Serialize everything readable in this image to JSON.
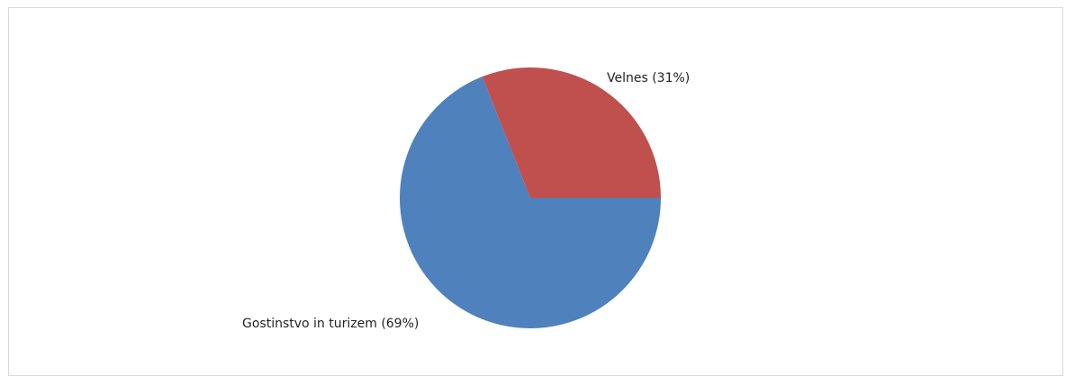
{
  "chart_data": {
    "type": "pie",
    "title": "",
    "slices": [
      {
        "label": "Velnes",
        "label_text": "Velnes (31%)",
        "value": 31,
        "color": "#c0504d"
      },
      {
        "label": "Gostinstvo in turizem",
        "label_text": "Gostinstvo in turizem (69%)",
        "value": 69,
        "color": "#4f81bd"
      }
    ],
    "start_angle_deg": 0,
    "direction": "counterclockwise",
    "legend": "none"
  }
}
